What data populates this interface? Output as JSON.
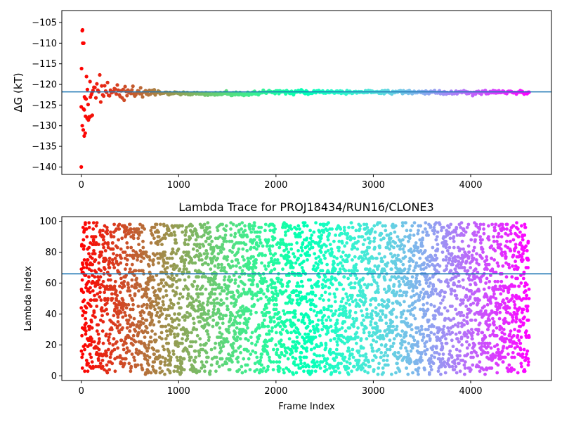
{
  "chart_data": [
    {
      "type": "scatter",
      "title": "",
      "xlabel": "",
      "ylabel": "ΔG (kT)",
      "xlim": [
        -200,
        4830
      ],
      "ylim": [
        -141.8,
        -102.1
      ],
      "xticks": [
        0,
        1000,
        2000,
        3000,
        4000
      ],
      "xtick_labels": [
        "0",
        "1000",
        "2000",
        "3000",
        "4000"
      ],
      "yticks": [
        -140,
        -135,
        -130,
        -125,
        -120,
        -115,
        -110,
        -105
      ],
      "ytick_labels": [
        "−140",
        "−135",
        "−130",
        "−125",
        "−120",
        "−115",
        "−110",
        "−105"
      ],
      "hline": -121.8,
      "hline_color": "#1f77b4",
      "colormap": "rainbow (red at frame 0 → violet at final frame)",
      "n_frames": 4600,
      "point_spacing": 10,
      "convergence": {
        "final_value": -121.9,
        "early_spread_kT": 14,
        "settle_frame": 800
      },
      "notable_points": [
        {
          "x": 0,
          "y": -140
        },
        {
          "x": 15,
          "y": -110
        },
        {
          "x": 25,
          "y": -110
        },
        {
          "x": 10,
          "y": -130
        },
        {
          "x": 30,
          "y": -132.5
        },
        {
          "x": 40,
          "y": -131.8
        }
      ]
    },
    {
      "type": "scatter",
      "title": "Lambda Trace for PROJ18434/RUN16/CLONE3",
      "xlabel": "Frame Index",
      "ylabel": "Lambda Index",
      "xlim": [
        -200,
        4830
      ],
      "ylim": [
        -3,
        103
      ],
      "xticks": [
        0,
        1000,
        2000,
        3000,
        4000
      ],
      "xtick_labels": [
        "0",
        "1000",
        "2000",
        "3000",
        "4000"
      ],
      "yticks": [
        0,
        20,
        40,
        60,
        80,
        100
      ],
      "ytick_labels": [
        "0",
        "20",
        "40",
        "60",
        "80",
        "100"
      ],
      "hline": 66,
      "hline_color": "#1f77b4",
      "colormap": "rainbow (red at frame 0 → violet at final frame)",
      "n_frames": 4600,
      "lambda_range": [
        1,
        99
      ],
      "distribution": "frames spread uniformly across lambda indices 1–99"
    }
  ]
}
